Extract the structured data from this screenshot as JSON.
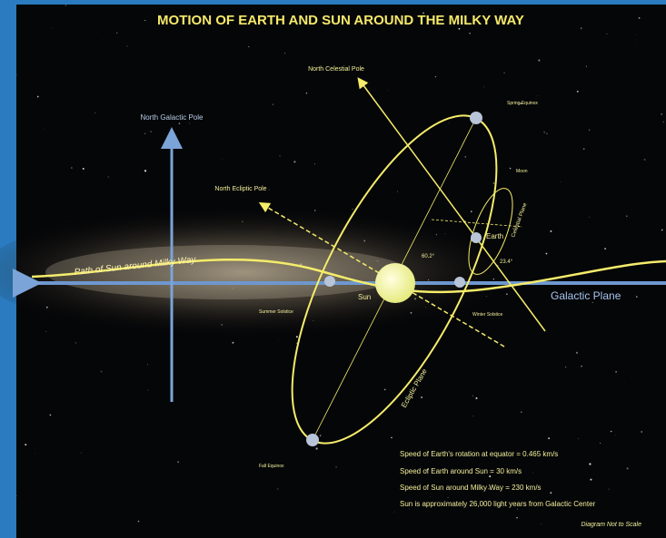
{
  "title": "MOTION OF EARTH AND SUN AROUND THE MILKY WAY",
  "labels": {
    "north_celestial_pole": "North Celestial Pole",
    "north_galactic_pole": "North Galactic Pole",
    "north_ecliptic_pole": "North Ecliptic Pole",
    "spring_equinox": "Spring Equinox",
    "moon": "Moon",
    "celestial_plane": "Celestial Plane",
    "earth": "Earth",
    "angle_galactic": "60.2°",
    "angle_axial": "23.4°",
    "sun_path": "Path of Sun around Milky Way",
    "sun": "Sun",
    "summer_solstice": "Summer Solstice",
    "winter_solstice": "Winter Solstice",
    "galactic_plane": "Galactic Plane",
    "ecliptic_plane": "Ecliptic Plane",
    "fall_equinox": "Fall Equinox"
  },
  "facts": [
    "Speed of Earth's rotation at equator = 0.465 km/s",
    "Speed of Earth around Sun = 30 km/s",
    "Speed of Sun around Milky Way = 230 km/s",
    "Sun is approximately 26,000 light years from Galactic Center"
  ],
  "note": "Diagram Not to Scale"
}
